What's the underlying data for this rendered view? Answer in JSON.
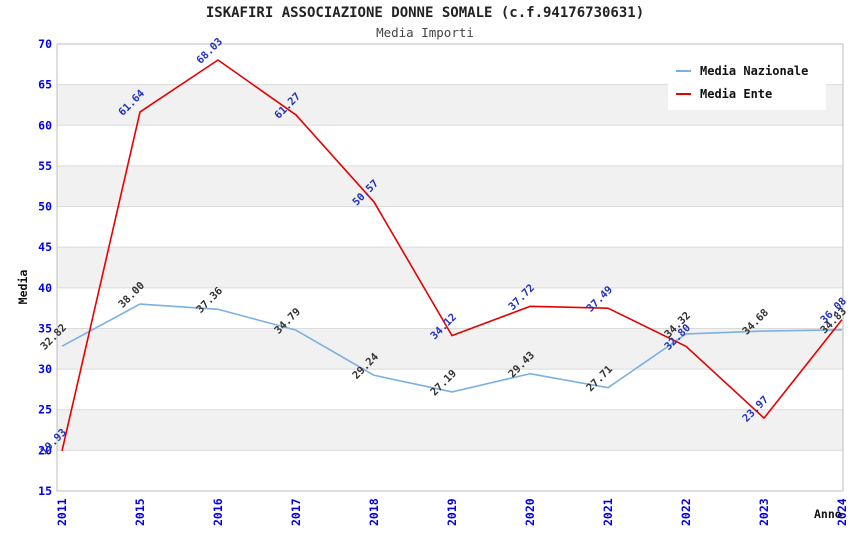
{
  "title": "ISKAFIRI ASSOCIAZIONE DONNE SOMALE (c.f.94176730631)",
  "subtitle": "Media Importi",
  "chart_data": {
    "type": "line",
    "title": "ISKAFIRI ASSOCIAZIONE DONNE SOMALE (c.f.94176730631)",
    "subtitle": "Media Importi",
    "xlabel": "Anno",
    "ylabel": "Media",
    "x": [
      "2011",
      "2015",
      "2016",
      "2017",
      "2018",
      "2019",
      "2020",
      "2021",
      "2022",
      "2023",
      "2024"
    ],
    "series": [
      {
        "name": "Media Nazionale",
        "color": "#7CB0E2",
        "label_color": "#333333",
        "values": [
          32.82,
          38.0,
          37.36,
          34.79,
          29.24,
          27.19,
          29.43,
          27.71,
          34.32,
          34.68,
          34.83
        ]
      },
      {
        "name": "Media Ente",
        "color": "#E60000",
        "label_color": "#2233BB",
        "values": [
          19.93,
          61.64,
          68.03,
          61.27,
          50.57,
          34.12,
          37.72,
          37.49,
          32.8,
          23.97,
          36.08
        ]
      }
    ],
    "ylim": [
      15,
      70
    ],
    "yticks": [
      15,
      20,
      25,
      30,
      35,
      40,
      45,
      50,
      55,
      60,
      65,
      70
    ],
    "grid": true,
    "legend_position": "top-right",
    "colors": {
      "tick_label": "#0000EE",
      "grid_line": "#DBDBDB",
      "band_fill": "#F1F1F1",
      "plot_border": "#BDBDBD"
    }
  }
}
